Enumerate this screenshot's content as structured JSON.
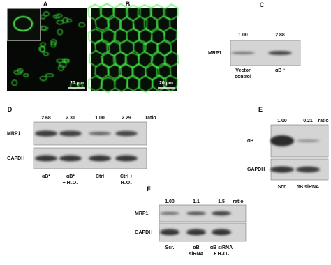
{
  "panels": {
    "a": {
      "label": "A",
      "scale_bar": "20 µm"
    },
    "b": {
      "label": "B",
      "scale_bar": "20 µm"
    },
    "c": {
      "label": "C",
      "ratios": [
        "1.00",
        "2.88"
      ],
      "rows": [
        "MRP1"
      ],
      "lanes": [
        [
          "Vector",
          "control"
        ],
        [
          "αB *"
        ]
      ]
    },
    "d": {
      "label": "D",
      "ratios": [
        "2.68",
        "2.31",
        "1.00",
        "2.29"
      ],
      "ratio_label": "ratio",
      "rows": [
        "MRP1",
        "GAPDH"
      ],
      "lanes": [
        [
          "αB*"
        ],
        [
          "αB*",
          "+ H₂O₂"
        ],
        [
          "Ctrl"
        ],
        [
          "Ctrl +",
          "H₂O₂"
        ]
      ]
    },
    "e": {
      "label": "E",
      "ratios": [
        "1.00",
        "0.21"
      ],
      "ratio_label": "ratio",
      "rows": [
        "αB",
        "GAPDH"
      ],
      "lanes": [
        [
          "Scr."
        ],
        [
          "αB siRNA"
        ]
      ]
    },
    "f": {
      "label": "F",
      "ratios": [
        "1.00",
        "1.1",
        "1.5"
      ],
      "ratio_label": "ratio",
      "rows": [
        "MRP1",
        "GAPDH"
      ],
      "lanes": [
        [
          "Scr."
        ],
        [
          "αB",
          "siRNA"
        ],
        [
          "αB siRNA",
          "+ H₂O₂"
        ]
      ]
    }
  }
}
